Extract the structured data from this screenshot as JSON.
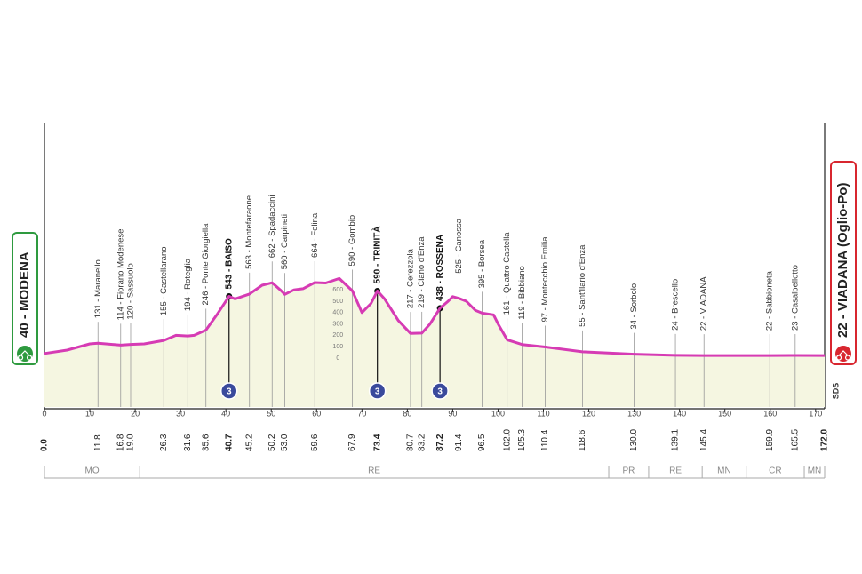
{
  "chart_data": {
    "type": "area",
    "x": [
      0,
      5,
      10,
      11.8,
      16.8,
      19,
      22,
      26.3,
      29,
      31.6,
      33,
      35.6,
      38,
      40.7,
      42,
      45.2,
      48,
      50.2,
      52,
      53,
      55,
      57,
      59.6,
      62,
      65,
      67.9,
      70,
      72,
      73.4,
      75,
      78,
      80.7,
      83.2,
      85,
      87.2,
      89,
      90,
      91.4,
      93,
      95,
      96.5,
      99,
      100,
      102,
      105.3,
      110.4,
      118.6,
      130,
      139.1,
      145.4,
      159.9,
      165.5,
      172
    ],
    "values": [
      40,
      70,
      125,
      131,
      114,
      120,
      125,
      155,
      200,
      194,
      200,
      246,
      380,
      543,
      520,
      563,
      640,
      662,
      600,
      560,
      600,
      610,
      664,
      660,
      700,
      590,
      400,
      480,
      590,
      520,
      330,
      217,
      219,
      300,
      438,
      500,
      540,
      525,
      500,
      420,
      395,
      380,
      300,
      161,
      119,
      97,
      55,
      34,
      24,
      22,
      22,
      23,
      22
    ],
    "color": "#d63bb4",
    "fill": "#f5f6e1",
    "xlim": [
      0,
      172
    ],
    "xticks": [
      0,
      10,
      20,
      30,
      40,
      50,
      60,
      70,
      80,
      90,
      100,
      110,
      120,
      130,
      140,
      150,
      160,
      170
    ],
    "ylim": [
      -430,
      2070
    ],
    "yticks": [
      0,
      100,
      200,
      300,
      400,
      500,
      600
    ],
    "waypoints": [
      {
        "km": {
          "value": 0,
          "label": "0.0"
        },
        "label": "40 - MODENA",
        "kind": "start"
      },
      {
        "km": 11.8,
        "label": "131 - Maranello"
      },
      {
        "km": 16.8,
        "label": "114 - Fiorano Modenese"
      },
      {
        "km": {
          "value": 19,
          "label": "19.0"
        },
        "label": "120 - Sassuolo"
      },
      {
        "km": 26.3,
        "label": "155 - Castellarano"
      },
      {
        "km": 31.6,
        "label": "194 - Roteglia"
      },
      {
        "km": 35.6,
        "label": "246 - Ponte Giorgiella"
      },
      {
        "km": 40.7,
        "label": "543 - BAISO",
        "kind": "gpm",
        "gpm": 3
      },
      {
        "km": 45.2,
        "label": "563 - Montefaraone"
      },
      {
        "km": 50.2,
        "label": "662 - Spadaccini"
      },
      {
        "km": {
          "value": 53,
          "label": "53.0"
        },
        "label": "560 - Carpineti"
      },
      {
        "km": 59.6,
        "label": "664 - Felina"
      },
      {
        "km": 67.9,
        "label": "590 - Gombio"
      },
      {
        "km": 73.4,
        "label": "590 - TRINITÀ",
        "kind": "gpm",
        "gpm": 3
      },
      {
        "km": 80.7,
        "label": "217 - Cerezzola"
      },
      {
        "km": 83.2,
        "label": "219 - Ciano d'Enza"
      },
      {
        "km": 87.2,
        "label": "438 - ROSSENA",
        "kind": "gpm",
        "gpm": 3
      },
      {
        "km": 91.4,
        "label": "525 - Canossa"
      },
      {
        "km": 96.5,
        "label": "395 - Borsea"
      },
      {
        "km": {
          "value": 102,
          "label": "102.0"
        },
        "label": "161 - Quattro Castella"
      },
      {
        "km": 105.3,
        "label": "119 - Bibbiano"
      },
      {
        "km": 110.4,
        "label": "97 - Montecchio Emilia"
      },
      {
        "km": 118.6,
        "label": "55 - Sant'Ilario d'Enza"
      },
      {
        "km": {
          "value": 130,
          "label": "130.0"
        },
        "label": "34 - Sorbolo"
      },
      {
        "km": 139.1,
        "label": "24 - Brescello"
      },
      {
        "km": 145.4,
        "label": "22 - VIADANA"
      },
      {
        "km": 159.9,
        "label": "22 - Sabbioneta"
      },
      {
        "km": 165.5,
        "label": "23 - Casalbellotto"
      },
      {
        "km": {
          "value": 172,
          "label": "172.0"
        },
        "label": "22 - VIADANA (Oglio-Po)",
        "kind": "finish"
      }
    ],
    "regions": [
      {
        "label": "MO",
        "from": 0,
        "to": 21
      },
      {
        "label": "RE",
        "from": 21,
        "to": 124.4
      },
      {
        "label": "PR",
        "from": 124.4,
        "to": 133.2
      },
      {
        "label": "RE",
        "from": 133.2,
        "to": 145
      },
      {
        "label": "MN",
        "from": 145,
        "to": 154.7
      },
      {
        "label": "CR",
        "from": 154.7,
        "to": 167.5
      },
      {
        "label": "MN",
        "from": 167.5,
        "to": 172
      }
    ],
    "side_note": "SDS"
  }
}
